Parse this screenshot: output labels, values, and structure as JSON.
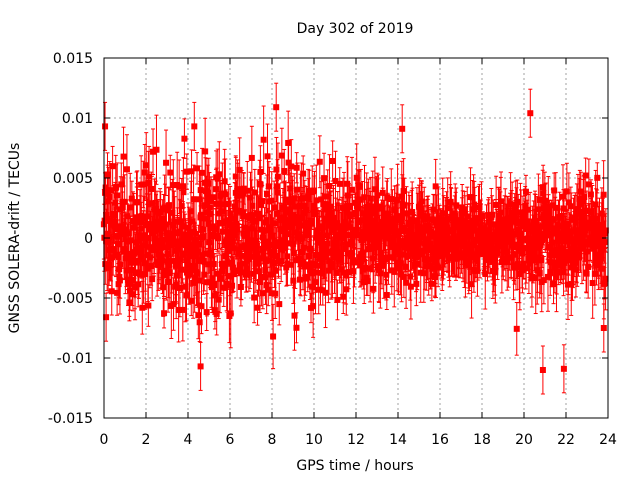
{
  "chart_data": {
    "type": "scatter",
    "title": "Day 302 of 2019",
    "xlabel": "GPS time / hours",
    "ylabel": "GNSS SOLERA-drift / TECUs",
    "xlim": [
      0,
      24
    ],
    "ylim": [
      -0.015,
      0.015
    ],
    "xticks": [
      0,
      2,
      4,
      6,
      8,
      10,
      12,
      14,
      16,
      18,
      20,
      22,
      24
    ],
    "yticks": [
      -0.015,
      -0.01,
      -0.005,
      0,
      0.005,
      0.01,
      0.015
    ],
    "xtick_labels": [
      "0",
      "2",
      "4",
      "6",
      "8",
      "10",
      "12",
      "14",
      "16",
      "18",
      "20",
      "22",
      "24"
    ],
    "ytick_labels": [
      "-0.015",
      "-0.01",
      "-0.005",
      "0",
      "0.005",
      "0.01",
      "0.015"
    ],
    "grid": true,
    "series_color": "#ff0000",
    "x_range_of_data": [
      0,
      23.9
    ],
    "points_with_error_bars": true,
    "notable_points": [
      {
        "x": 0.05,
        "y": 0.0093
      },
      {
        "x": 4.3,
        "y": 0.0093
      },
      {
        "x": 8.2,
        "y": 0.0109
      },
      {
        "x": 14.2,
        "y": 0.0091
      },
      {
        "x": 20.3,
        "y": 0.0104
      },
      {
        "x": 4.6,
        "y": -0.0107
      },
      {
        "x": 20.9,
        "y": -0.011
      },
      {
        "x": 21.9,
        "y": -0.0109
      },
      {
        "x": 0.1,
        "y": -0.0066
      },
      {
        "x": 23.8,
        "y": -0.0075
      }
    ],
    "typical_spread": 0.003
  }
}
